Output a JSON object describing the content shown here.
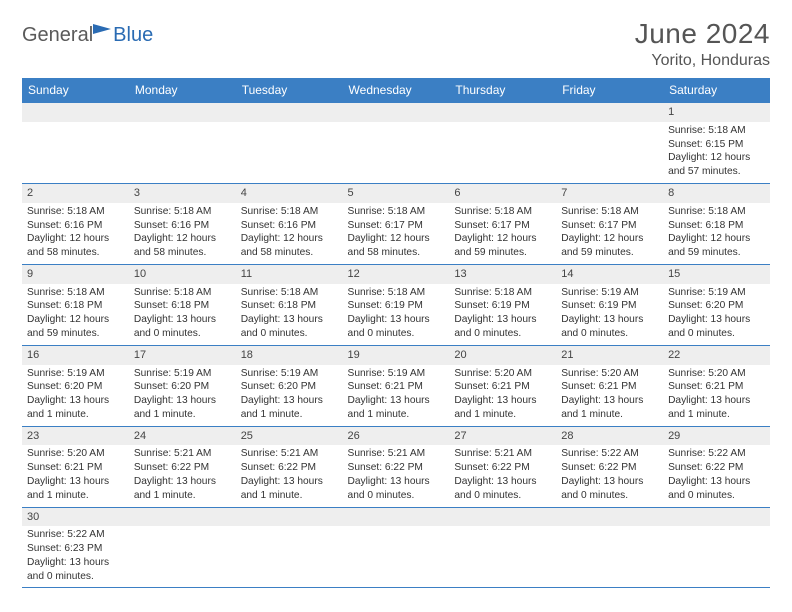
{
  "brand": {
    "part1": "General",
    "part2": "Blue"
  },
  "title": "June 2024",
  "location": "Yorito, Honduras",
  "colors": {
    "header_bg": "#3b7fc4",
    "header_fg": "#ffffff",
    "daynum_bg": "#eeeeee",
    "rule": "#3b7fc4",
    "brand_gray": "#5a5a5a",
    "brand_blue": "#2a6bb3"
  },
  "weekdays": [
    "Sunday",
    "Monday",
    "Tuesday",
    "Wednesday",
    "Thursday",
    "Friday",
    "Saturday"
  ],
  "weeks": [
    [
      null,
      null,
      null,
      null,
      null,
      null,
      {
        "n": "1",
        "sr": "5:18 AM",
        "ss": "6:15 PM",
        "dl": "12 hours and 57 minutes."
      }
    ],
    [
      {
        "n": "2",
        "sr": "5:18 AM",
        "ss": "6:16 PM",
        "dl": "12 hours and 58 minutes."
      },
      {
        "n": "3",
        "sr": "5:18 AM",
        "ss": "6:16 PM",
        "dl": "12 hours and 58 minutes."
      },
      {
        "n": "4",
        "sr": "5:18 AM",
        "ss": "6:16 PM",
        "dl": "12 hours and 58 minutes."
      },
      {
        "n": "5",
        "sr": "5:18 AM",
        "ss": "6:17 PM",
        "dl": "12 hours and 58 minutes."
      },
      {
        "n": "6",
        "sr": "5:18 AM",
        "ss": "6:17 PM",
        "dl": "12 hours and 59 minutes."
      },
      {
        "n": "7",
        "sr": "5:18 AM",
        "ss": "6:17 PM",
        "dl": "12 hours and 59 minutes."
      },
      {
        "n": "8",
        "sr": "5:18 AM",
        "ss": "6:18 PM",
        "dl": "12 hours and 59 minutes."
      }
    ],
    [
      {
        "n": "9",
        "sr": "5:18 AM",
        "ss": "6:18 PM",
        "dl": "12 hours and 59 minutes."
      },
      {
        "n": "10",
        "sr": "5:18 AM",
        "ss": "6:18 PM",
        "dl": "13 hours and 0 minutes."
      },
      {
        "n": "11",
        "sr": "5:18 AM",
        "ss": "6:18 PM",
        "dl": "13 hours and 0 minutes."
      },
      {
        "n": "12",
        "sr": "5:18 AM",
        "ss": "6:19 PM",
        "dl": "13 hours and 0 minutes."
      },
      {
        "n": "13",
        "sr": "5:18 AM",
        "ss": "6:19 PM",
        "dl": "13 hours and 0 minutes."
      },
      {
        "n": "14",
        "sr": "5:19 AM",
        "ss": "6:19 PM",
        "dl": "13 hours and 0 minutes."
      },
      {
        "n": "15",
        "sr": "5:19 AM",
        "ss": "6:20 PM",
        "dl": "13 hours and 0 minutes."
      }
    ],
    [
      {
        "n": "16",
        "sr": "5:19 AM",
        "ss": "6:20 PM",
        "dl": "13 hours and 1 minute."
      },
      {
        "n": "17",
        "sr": "5:19 AM",
        "ss": "6:20 PM",
        "dl": "13 hours and 1 minute."
      },
      {
        "n": "18",
        "sr": "5:19 AM",
        "ss": "6:20 PM",
        "dl": "13 hours and 1 minute."
      },
      {
        "n": "19",
        "sr": "5:19 AM",
        "ss": "6:21 PM",
        "dl": "13 hours and 1 minute."
      },
      {
        "n": "20",
        "sr": "5:20 AM",
        "ss": "6:21 PM",
        "dl": "13 hours and 1 minute."
      },
      {
        "n": "21",
        "sr": "5:20 AM",
        "ss": "6:21 PM",
        "dl": "13 hours and 1 minute."
      },
      {
        "n": "22",
        "sr": "5:20 AM",
        "ss": "6:21 PM",
        "dl": "13 hours and 1 minute."
      }
    ],
    [
      {
        "n": "23",
        "sr": "5:20 AM",
        "ss": "6:21 PM",
        "dl": "13 hours and 1 minute."
      },
      {
        "n": "24",
        "sr": "5:21 AM",
        "ss": "6:22 PM",
        "dl": "13 hours and 1 minute."
      },
      {
        "n": "25",
        "sr": "5:21 AM",
        "ss": "6:22 PM",
        "dl": "13 hours and 1 minute."
      },
      {
        "n": "26",
        "sr": "5:21 AM",
        "ss": "6:22 PM",
        "dl": "13 hours and 0 minutes."
      },
      {
        "n": "27",
        "sr": "5:21 AM",
        "ss": "6:22 PM",
        "dl": "13 hours and 0 minutes."
      },
      {
        "n": "28",
        "sr": "5:22 AM",
        "ss": "6:22 PM",
        "dl": "13 hours and 0 minutes."
      },
      {
        "n": "29",
        "sr": "5:22 AM",
        "ss": "6:22 PM",
        "dl": "13 hours and 0 minutes."
      }
    ],
    [
      {
        "n": "30",
        "sr": "5:22 AM",
        "ss": "6:23 PM",
        "dl": "13 hours and 0 minutes."
      },
      null,
      null,
      null,
      null,
      null,
      null
    ]
  ],
  "labels": {
    "sunrise": "Sunrise: ",
    "sunset": "Sunset: ",
    "daylight": "Daylight: "
  }
}
